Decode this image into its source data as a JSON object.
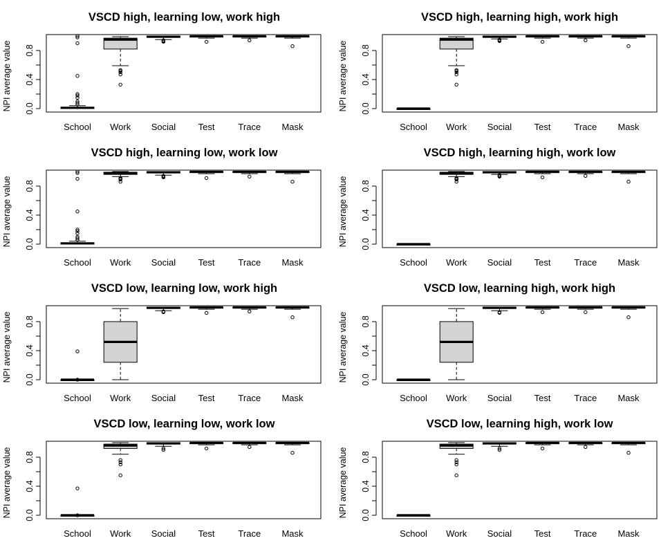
{
  "chart_data": [
    {
      "type": "box",
      "title": "VSCD high, learning low, work high",
      "xlabel": "",
      "ylabel": "NPI average value",
      "ylim": [
        0,
        1
      ],
      "yticks": [
        "0.0",
        "0.4",
        "0.8"
      ],
      "categories": [
        "School",
        "Work",
        "Social",
        "Test",
        "Trace",
        "Mask"
      ],
      "boxes": [
        {
          "category": "School",
          "min": 0.0,
          "q1": 0.0,
          "median": 0.01,
          "q3": 0.02,
          "max": 0.04,
          "outliers": [
            0.06,
            0.08,
            0.1,
            0.15,
            0.18,
            0.2,
            0.45,
            0.9,
            0.98,
            1.0
          ]
        },
        {
          "category": "Work",
          "min": 0.59,
          "q1": 0.82,
          "median": 0.95,
          "q3": 0.97,
          "max": 0.99,
          "outliers": [
            0.33,
            0.47,
            0.5,
            0.52,
            0.53
          ]
        },
        {
          "category": "Social",
          "min": 0.95,
          "q1": 0.98,
          "median": 0.99,
          "q3": 1.0,
          "max": 1.0,
          "outliers": [
            0.92,
            0.93,
            0.94
          ]
        },
        {
          "category": "Test",
          "min": 0.97,
          "q1": 0.985,
          "median": 0.995,
          "q3": 1.0,
          "max": 1.0,
          "outliers": [
            0.92
          ]
        },
        {
          "category": "Trace",
          "min": 0.97,
          "q1": 0.985,
          "median": 0.995,
          "q3": 1.0,
          "max": 1.0,
          "outliers": [
            0.94
          ]
        },
        {
          "category": "Mask",
          "min": 0.97,
          "q1": 0.985,
          "median": 0.995,
          "q3": 1.0,
          "max": 1.0,
          "outliers": [
            0.86
          ]
        }
      ]
    },
    {
      "type": "box",
      "title": "VSCD high, learning high, work high",
      "xlabel": "",
      "ylabel": "NPI average value",
      "ylim": [
        0,
        1
      ],
      "yticks": [
        "0.0",
        "0.4",
        "0.8"
      ],
      "categories": [
        "School",
        "Work",
        "Social",
        "Test",
        "Trace",
        "Mask"
      ],
      "boxes": [
        {
          "category": "School",
          "min": 0.0,
          "q1": 0.0,
          "median": 0.0,
          "q3": 0.0,
          "max": 0.0,
          "outliers": []
        },
        {
          "category": "Work",
          "min": 0.59,
          "q1": 0.82,
          "median": 0.95,
          "q3": 0.97,
          "max": 0.99,
          "outliers": [
            0.33,
            0.47,
            0.5,
            0.52,
            0.53
          ]
        },
        {
          "category": "Social",
          "min": 0.96,
          "q1": 0.98,
          "median": 0.99,
          "q3": 1.0,
          "max": 1.0,
          "outliers": [
            0.93,
            0.94,
            0.95
          ]
        },
        {
          "category": "Test",
          "min": 0.97,
          "q1": 0.985,
          "median": 0.995,
          "q3": 1.0,
          "max": 1.0,
          "outliers": [
            0.92
          ]
        },
        {
          "category": "Trace",
          "min": 0.97,
          "q1": 0.985,
          "median": 0.995,
          "q3": 1.0,
          "max": 1.0,
          "outliers": [
            0.94
          ]
        },
        {
          "category": "Mask",
          "min": 0.97,
          "q1": 0.985,
          "median": 0.995,
          "q3": 1.0,
          "max": 1.0,
          "outliers": [
            0.86
          ]
        }
      ]
    },
    {
      "type": "box",
      "title": "VSCD high, learning low, work low",
      "xlabel": "",
      "ylabel": "NPI average value",
      "ylim": [
        0,
        1
      ],
      "yticks": [
        "0.0",
        "0.4",
        "0.8"
      ],
      "categories": [
        "School",
        "Work",
        "Social",
        "Test",
        "Trace",
        "Mask"
      ],
      "boxes": [
        {
          "category": "School",
          "min": 0.0,
          "q1": 0.0,
          "median": 0.01,
          "q3": 0.02,
          "max": 0.04,
          "outliers": [
            0.06,
            0.08,
            0.1,
            0.15,
            0.18,
            0.2,
            0.45,
            0.9,
            0.98,
            1.0
          ]
        },
        {
          "category": "Work",
          "min": 0.93,
          "q1": 0.96,
          "median": 0.98,
          "q3": 0.99,
          "max": 1.0,
          "outliers": [
            0.86,
            0.89,
            0.9,
            0.91
          ]
        },
        {
          "category": "Social",
          "min": 0.95,
          "q1": 0.98,
          "median": 0.99,
          "q3": 1.0,
          "max": 1.0,
          "outliers": [
            0.92,
            0.93,
            0.94
          ]
        },
        {
          "category": "Test",
          "min": 0.97,
          "q1": 0.985,
          "median": 0.995,
          "q3": 1.0,
          "max": 1.0,
          "outliers": [
            0.91
          ]
        },
        {
          "category": "Trace",
          "min": 0.97,
          "q1": 0.985,
          "median": 0.995,
          "q3": 1.0,
          "max": 1.0,
          "outliers": [
            0.93
          ]
        },
        {
          "category": "Mask",
          "min": 0.97,
          "q1": 0.985,
          "median": 0.995,
          "q3": 1.0,
          "max": 1.0,
          "outliers": [
            0.86
          ]
        }
      ]
    },
    {
      "type": "box",
      "title": "VSCD high, learning high, work low",
      "xlabel": "",
      "ylabel": "NPI average value",
      "ylim": [
        0,
        1
      ],
      "yticks": [
        "0.0",
        "0.4",
        "0.8"
      ],
      "categories": [
        "School",
        "Work",
        "Social",
        "Test",
        "Trace",
        "Mask"
      ],
      "boxes": [
        {
          "category": "School",
          "min": 0.0,
          "q1": 0.0,
          "median": 0.0,
          "q3": 0.0,
          "max": 0.0,
          "outliers": []
        },
        {
          "category": "Work",
          "min": 0.93,
          "q1": 0.96,
          "median": 0.98,
          "q3": 0.99,
          "max": 1.0,
          "outliers": [
            0.86,
            0.89,
            0.9,
            0.91
          ]
        },
        {
          "category": "Social",
          "min": 0.96,
          "q1": 0.98,
          "median": 0.99,
          "q3": 1.0,
          "max": 1.0,
          "outliers": [
            0.93,
            0.94,
            0.95
          ]
        },
        {
          "category": "Test",
          "min": 0.97,
          "q1": 0.985,
          "median": 0.995,
          "q3": 1.0,
          "max": 1.0,
          "outliers": [
            0.92
          ]
        },
        {
          "category": "Trace",
          "min": 0.97,
          "q1": 0.985,
          "median": 0.995,
          "q3": 1.0,
          "max": 1.0,
          "outliers": [
            0.94
          ]
        },
        {
          "category": "Mask",
          "min": 0.97,
          "q1": 0.985,
          "median": 0.995,
          "q3": 1.0,
          "max": 1.0,
          "outliers": [
            0.86
          ]
        }
      ]
    },
    {
      "type": "box",
      "title": "VSCD low, learning low, work high",
      "xlabel": "",
      "ylabel": "NPI average value",
      "ylim": [
        0,
        1
      ],
      "yticks": [
        "0.0",
        "0.4",
        "0.8"
      ],
      "categories": [
        "School",
        "Work",
        "Social",
        "Test",
        "Trace",
        "Mask"
      ],
      "boxes": [
        {
          "category": "School",
          "min": 0.0,
          "q1": 0.0,
          "median": 0.0,
          "q3": 0.0,
          "max": 0.0,
          "outliers": [
            0.0,
            0.39
          ]
        },
        {
          "category": "Work",
          "min": 0.0,
          "q1": 0.24,
          "median": 0.52,
          "q3": 0.8,
          "max": 0.98,
          "outliers": []
        },
        {
          "category": "Social",
          "min": 0.95,
          "q1": 0.98,
          "median": 0.99,
          "q3": 1.0,
          "max": 1.0,
          "outliers": [
            0.93,
            0.94
          ]
        },
        {
          "category": "Test",
          "min": 0.97,
          "q1": 0.985,
          "median": 0.995,
          "q3": 1.0,
          "max": 1.0,
          "outliers": [
            0.92
          ]
        },
        {
          "category": "Trace",
          "min": 0.97,
          "q1": 0.985,
          "median": 0.995,
          "q3": 1.0,
          "max": 1.0,
          "outliers": [
            0.94
          ]
        },
        {
          "category": "Mask",
          "min": 0.97,
          "q1": 0.985,
          "median": 0.995,
          "q3": 1.0,
          "max": 1.0,
          "outliers": [
            0.86
          ]
        }
      ]
    },
    {
      "type": "box",
      "title": "VSCD low, learning high, work high",
      "xlabel": "",
      "ylabel": "NPI average value",
      "ylim": [
        0,
        1
      ],
      "yticks": [
        "0.0",
        "0.4",
        "0.8"
      ],
      "categories": [
        "School",
        "Work",
        "Social",
        "Test",
        "Trace",
        "Mask"
      ],
      "boxes": [
        {
          "category": "School",
          "min": 0.0,
          "q1": 0.0,
          "median": 0.0,
          "q3": 0.0,
          "max": 0.0,
          "outliers": []
        },
        {
          "category": "Work",
          "min": 0.0,
          "q1": 0.24,
          "median": 0.52,
          "q3": 0.8,
          "max": 0.98,
          "outliers": []
        },
        {
          "category": "Social",
          "min": 0.95,
          "q1": 0.98,
          "median": 0.99,
          "q3": 1.0,
          "max": 1.0,
          "outliers": [
            0.92,
            0.93
          ]
        },
        {
          "category": "Test",
          "min": 0.97,
          "q1": 0.985,
          "median": 0.995,
          "q3": 1.0,
          "max": 1.0,
          "outliers": [
            0.93
          ]
        },
        {
          "category": "Trace",
          "min": 0.97,
          "q1": 0.985,
          "median": 0.995,
          "q3": 1.0,
          "max": 1.0,
          "outliers": [
            0.93
          ]
        },
        {
          "category": "Mask",
          "min": 0.97,
          "q1": 0.985,
          "median": 0.995,
          "q3": 1.0,
          "max": 1.0,
          "outliers": [
            0.86
          ]
        }
      ]
    },
    {
      "type": "box",
      "title": "VSCD low, learning low, work low",
      "xlabel": "",
      "ylabel": "NPI average value",
      "ylim": [
        0,
        1
      ],
      "yticks": [
        "0.0",
        "0.4",
        "0.8"
      ],
      "categories": [
        "School",
        "Work",
        "Social",
        "Test",
        "Trace",
        "Mask"
      ],
      "boxes": [
        {
          "category": "School",
          "min": 0.0,
          "q1": 0.0,
          "median": 0.0,
          "q3": 0.0,
          "max": 0.0,
          "outliers": [
            0.0,
            0.37
          ]
        },
        {
          "category": "Work",
          "min": 0.84,
          "q1": 0.92,
          "median": 0.96,
          "q3": 0.98,
          "max": 1.0,
          "outliers": [
            0.55,
            0.7,
            0.73,
            0.76
          ]
        },
        {
          "category": "Social",
          "min": 0.95,
          "q1": 0.98,
          "median": 0.99,
          "q3": 1.0,
          "max": 1.0,
          "outliers": [
            0.9,
            0.92
          ]
        },
        {
          "category": "Test",
          "min": 0.97,
          "q1": 0.985,
          "median": 0.995,
          "q3": 1.0,
          "max": 1.0,
          "outliers": [
            0.92
          ]
        },
        {
          "category": "Trace",
          "min": 0.97,
          "q1": 0.985,
          "median": 0.995,
          "q3": 1.0,
          "max": 1.0,
          "outliers": [
            0.94
          ]
        },
        {
          "category": "Mask",
          "min": 0.97,
          "q1": 0.985,
          "median": 0.995,
          "q3": 1.0,
          "max": 1.0,
          "outliers": [
            0.86
          ]
        }
      ]
    },
    {
      "type": "box",
      "title": "VSCD low, learning high, work low",
      "xlabel": "",
      "ylabel": "NPI average value",
      "ylim": [
        0,
        1
      ],
      "yticks": [
        "0.0",
        "0.4",
        "0.8"
      ],
      "categories": [
        "School",
        "Work",
        "Social",
        "Test",
        "Trace",
        "Mask"
      ],
      "boxes": [
        {
          "category": "School",
          "min": 0.0,
          "q1": 0.0,
          "median": 0.0,
          "q3": 0.0,
          "max": 0.0,
          "outliers": []
        },
        {
          "category": "Work",
          "min": 0.84,
          "q1": 0.92,
          "median": 0.96,
          "q3": 0.98,
          "max": 1.0,
          "outliers": [
            0.55,
            0.7,
            0.73,
            0.76
          ]
        },
        {
          "category": "Social",
          "min": 0.95,
          "q1": 0.98,
          "median": 0.99,
          "q3": 1.0,
          "max": 1.0,
          "outliers": [
            0.9,
            0.92
          ]
        },
        {
          "category": "Test",
          "min": 0.97,
          "q1": 0.985,
          "median": 0.995,
          "q3": 1.0,
          "max": 1.0,
          "outliers": [
            0.92
          ]
        },
        {
          "category": "Trace",
          "min": 0.97,
          "q1": 0.985,
          "median": 0.995,
          "q3": 1.0,
          "max": 1.0,
          "outliers": [
            0.94
          ]
        },
        {
          "category": "Mask",
          "min": 0.97,
          "q1": 0.985,
          "median": 0.995,
          "q3": 1.0,
          "max": 1.0,
          "outliers": [
            0.86
          ]
        }
      ]
    }
  ],
  "colors": {
    "box_fill": "#d3d3d3",
    "stroke": "#000000",
    "background": "#ffffff"
  }
}
